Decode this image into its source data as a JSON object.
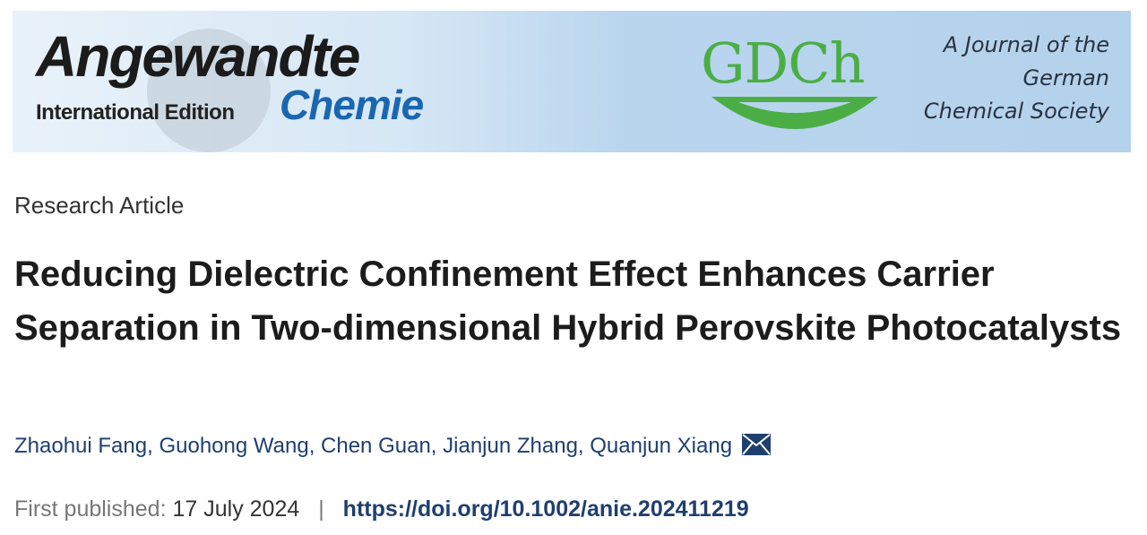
{
  "banner": {
    "journal_name": "Angewandte",
    "journal_subname": "Chemie",
    "edition": "International Edition",
    "society_logo": "GDCh",
    "society_tagline": [
      "A Journal of the",
      "German",
      "Chemical Society"
    ],
    "colors": {
      "brand_blue": "#1a66b0",
      "gdch_green": "#4aae45"
    }
  },
  "article": {
    "type": "Research Article",
    "title": "Reducing Dielectric Confinement Effect Enhances Carrier Separation in Two-dimensional Hybrid Perovskite Photocatalysts",
    "authors": [
      {
        "name": "Zhaohui Fang",
        "sep": ", "
      },
      {
        "name": "Guohong Wang",
        "sep": ", "
      },
      {
        "name": "Chen Guan",
        "sep": ", "
      },
      {
        "name": "Jianjun Zhang",
        "sep": ", "
      },
      {
        "name": "Quanjun Xiang",
        "sep": ""
      }
    ],
    "corresponding_icon": "envelope-icon",
    "published_label": "First published:",
    "published_date": "17 July 2024",
    "separator": "|",
    "doi": "https://doi.org/10.1002/anie.202411219"
  }
}
